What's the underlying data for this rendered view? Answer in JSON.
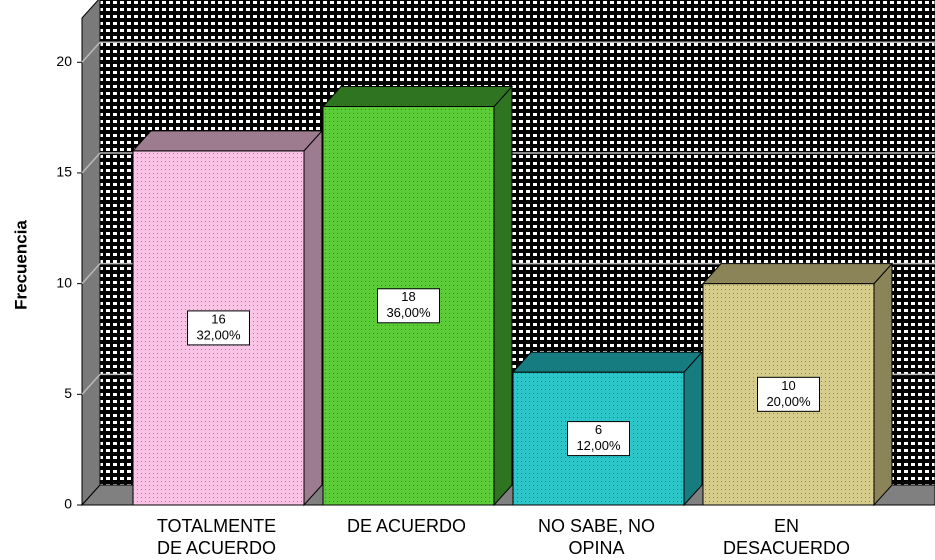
{
  "chart_data": {
    "type": "bar3d",
    "y_label": "Frecuencia",
    "categories": [
      [
        "TOTALMENTE",
        "DE ACUERDO"
      ],
      [
        "DE ACUERDO"
      ],
      [
        "NO SABE, NO",
        "OPINA"
      ],
      [
        "EN",
        "DESACUERDO"
      ]
    ],
    "values": [
      16,
      18,
      6,
      10
    ],
    "value_labels": [
      [
        "16",
        "32,00%"
      ],
      [
        "18",
        "36,00%"
      ],
      [
        "6",
        "12,00%"
      ],
      [
        "10",
        "20,00%"
      ]
    ],
    "colors": [
      "#fbc4e6",
      "#5ccc38",
      "#2cc6c8",
      "#d6cc8c"
    ],
    "side_colors": [
      "#9c7c8e",
      "#2f7420",
      "#177c80",
      "#8a8458"
    ],
    "ylim": [
      0,
      22
    ],
    "yticks": [
      0,
      5,
      10,
      15,
      20
    ],
    "grid": true
  }
}
